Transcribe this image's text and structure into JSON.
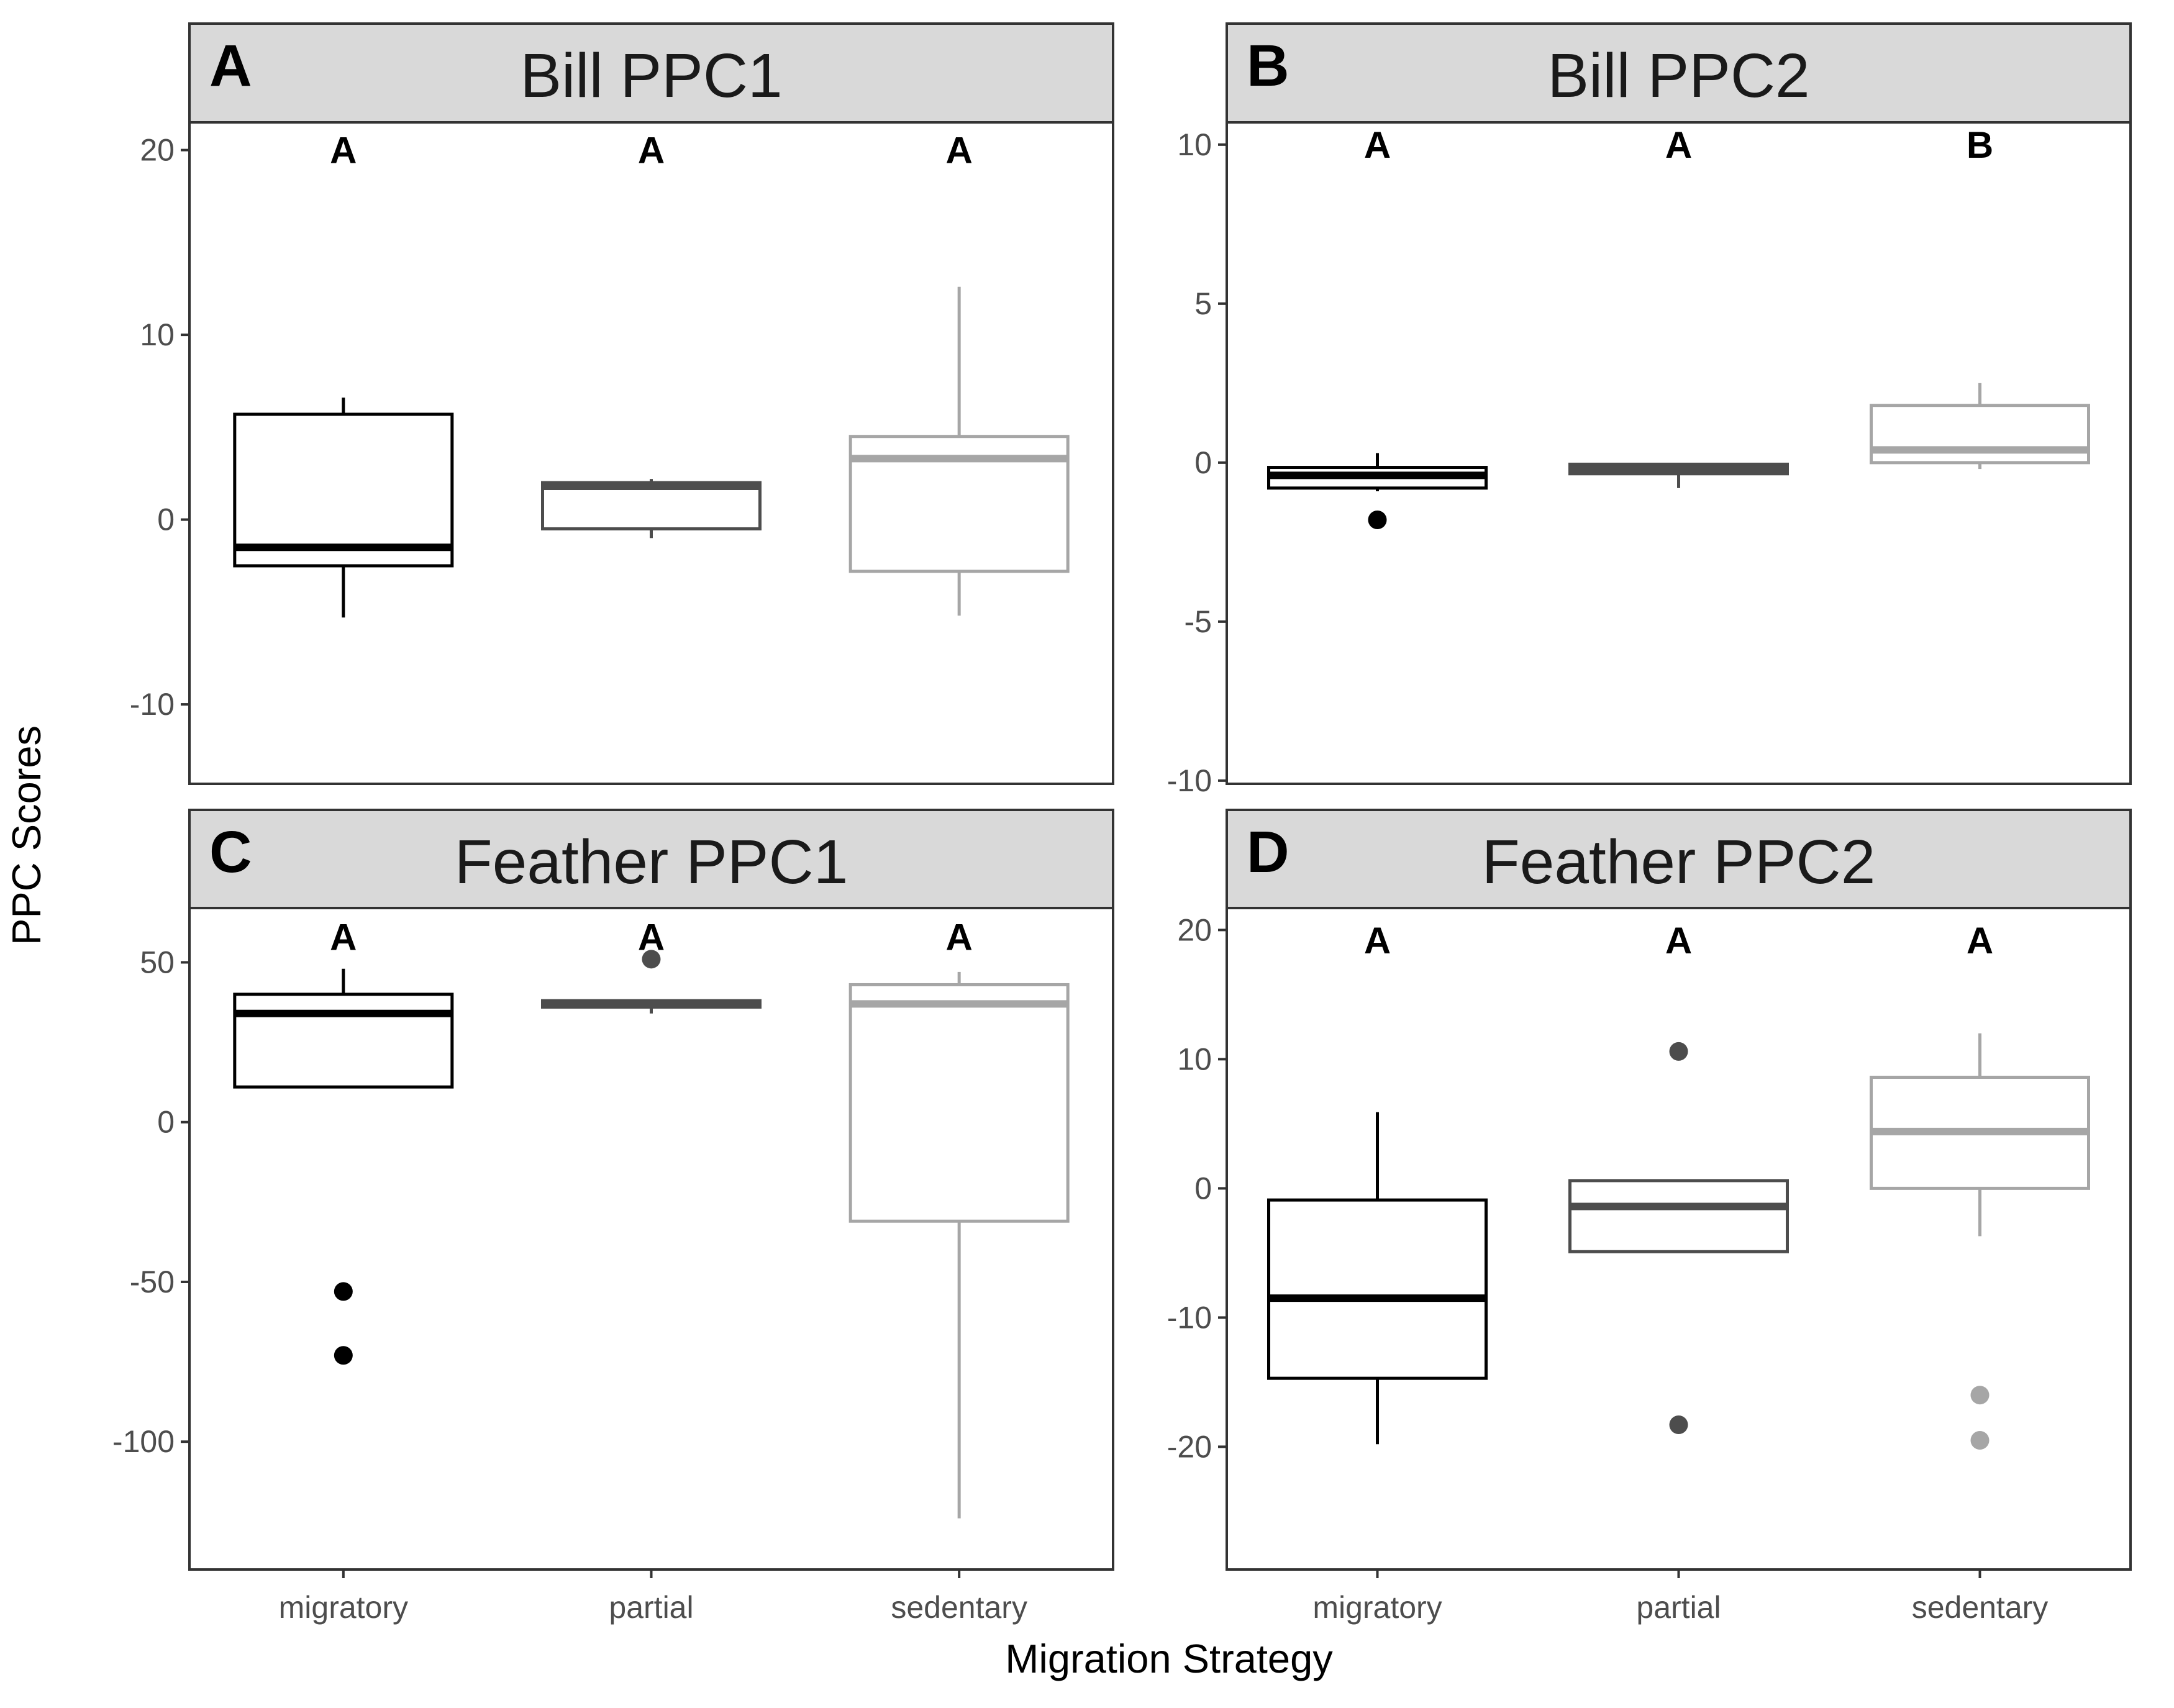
{
  "chart_data": {
    "type": "box",
    "xlabel": "Migration Strategy",
    "ylabel": "PPC Scores",
    "categories": [
      "migratory",
      "partial",
      "sedentary"
    ],
    "series_colors": {
      "migratory": "#000000",
      "partial": "#4d4d4d",
      "sedentary": "#a6a6a6"
    },
    "panels": [
      {
        "tag": "A",
        "title": "Bill PPC1",
        "ylim": [
          -14.3,
          21.5
        ],
        "yticks": [
          -10,
          0,
          10,
          20
        ],
        "letters": [
          "A",
          "A",
          "A"
        ],
        "letter_y": 20,
        "boxes": [
          {
            "category": "migratory",
            "whisker_low": -5.3,
            "q1": -2.5,
            "median": -1.5,
            "q3": 5.7,
            "whisker_high": 6.6,
            "outliers": []
          },
          {
            "category": "partial",
            "whisker_low": -1.0,
            "q1": -0.5,
            "median": 1.8,
            "q3": 2.0,
            "whisker_high": 2.2,
            "outliers": []
          },
          {
            "category": "sedentary",
            "whisker_low": -5.2,
            "q1": -2.8,
            "median": 3.3,
            "q3": 4.5,
            "whisker_high": 12.6,
            "outliers": []
          }
        ]
      },
      {
        "tag": "B",
        "title": "Bill PPC2",
        "ylim": [
          -10.1,
          10.7
        ],
        "yticks": [
          -10,
          -5,
          0,
          5,
          10
        ],
        "letters": [
          "A",
          "A",
          "B"
        ],
        "letter_y": 10,
        "boxes": [
          {
            "category": "migratory",
            "whisker_low": -0.9,
            "q1": -0.8,
            "median": -0.4,
            "q3": -0.15,
            "whisker_high": 0.3,
            "outliers": [
              -1.8
            ]
          },
          {
            "category": "partial",
            "whisker_low": -0.8,
            "q1": -0.35,
            "median": -0.2,
            "q3": -0.05,
            "whisker_high": -0.05,
            "outliers": []
          },
          {
            "category": "sedentary",
            "whisker_low": -0.2,
            "q1": 0.0,
            "median": 0.4,
            "q3": 1.8,
            "whisker_high": 2.5,
            "outliers": []
          }
        ]
      },
      {
        "tag": "C",
        "title": "Feather PPC1",
        "ylim": [
          -140,
          67
        ],
        "yticks": [
          -100,
          -50,
          0,
          50
        ],
        "letters": [
          "A",
          "A",
          "A"
        ],
        "letter_y": 58,
        "boxes": [
          {
            "category": "migratory",
            "whisker_low": 11,
            "q1": 11,
            "median": 34,
            "q3": 40,
            "whisker_high": 48,
            "outliers": [
              -53,
              -73
            ]
          },
          {
            "category": "partial",
            "whisker_low": 34,
            "q1": 36,
            "median": 37,
            "q3": 38,
            "whisker_high": 38,
            "outliers": [
              51
            ]
          },
          {
            "category": "sedentary",
            "whisker_low": -124,
            "q1": -31,
            "median": 37,
            "q3": 43,
            "whisker_high": 47,
            "outliers": []
          }
        ]
      },
      {
        "tag": "D",
        "title": "Feather PPC2",
        "ylim": [
          -29.5,
          21.7
        ],
        "yticks": [
          -20,
          -10,
          0,
          10,
          20
        ],
        "letters": [
          "A",
          "A",
          "A"
        ],
        "letter_y": 19.2,
        "boxes": [
          {
            "category": "migratory",
            "whisker_low": -19.8,
            "q1": -14.7,
            "median": -8.5,
            "q3": -0.9,
            "whisker_high": 5.9,
            "outliers": []
          },
          {
            "category": "partial",
            "whisker_low": -4.9,
            "q1": -4.9,
            "median": -1.4,
            "q3": 0.6,
            "whisker_high": 0.6,
            "outliers": [
              10.6,
              -18.3
            ]
          },
          {
            "category": "sedentary",
            "whisker_low": -3.7,
            "q1": 0.0,
            "median": 4.4,
            "q3": 8.6,
            "whisker_high": 12.0,
            "outliers": [
              -16.0,
              -19.5
            ]
          }
        ]
      }
    ]
  }
}
